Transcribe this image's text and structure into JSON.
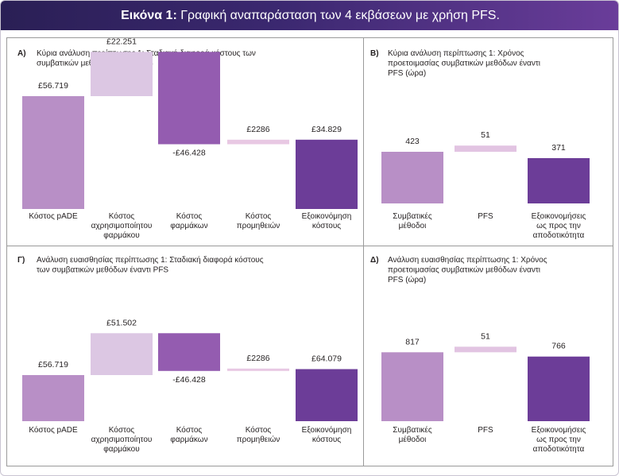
{
  "header": {
    "title_bold": "Εικόνα 1:",
    "title_rest": "Γραφική αναπαράσταση των 4 εκβάσεων με χρήση PFS."
  },
  "colors": {
    "pade": "#b88fc6",
    "drug_waste": "#dcc7e3",
    "drug_cost": "#945cb0",
    "supply": "#e8c8e3",
    "savings": "#6c3d98",
    "conventional": "#b88fc6",
    "pfs": "#e2c4e2",
    "time_savings": "#6c3d98"
  },
  "chart_data": [
    {
      "type": "bar",
      "subtype": "waterfall",
      "letter": "A)",
      "title_lines": [
        "Κύρια ανάλυση περίπτωσης 1: Σταδιακή διαφορά κόστους των",
        "συμβατικών μεθόδων έναντι PFS"
      ],
      "categories": [
        [
          "Κόστος pADE"
        ],
        [
          "Κόστος",
          "αχρησιμοποίητου",
          "φαρμάκου"
        ],
        [
          "Κόστος",
          "φαρμάκων"
        ],
        [
          "Κόστος",
          "προμηθειών"
        ],
        [
          "Εξοικονόμηση",
          "κόστους"
        ]
      ],
      "values": [
        56719,
        22251,
        -46428,
        2286,
        34829
      ],
      "value_labels": [
        "£56.719",
        "£22.251",
        "-£46.428",
        "£2286",
        "£34.829"
      ],
      "color_keys": [
        "pade",
        "drug_waste",
        "drug_cost",
        "supply",
        "savings"
      ]
    },
    {
      "type": "bar",
      "subtype": "waterfall",
      "letter": "Β)",
      "title_lines": [
        "Κύρια ανάλυση περίπτωσης 1: Χρόνος",
        "προετοιμασίας συμβατικών μεθόδων έναντι",
        "PFS (ώρα)"
      ],
      "categories": [
        [
          "Συμβατικές",
          "μέθοδοι"
        ],
        [
          "PFS"
        ],
        [
          "Εξοικονομήσεις",
          "ως προς την",
          "αποδοτικότητα"
        ]
      ],
      "values": [
        423,
        51,
        371
      ],
      "value_labels": [
        "423",
        "51",
        "371"
      ],
      "color_keys": [
        "conventional",
        "pfs",
        "time_savings"
      ]
    },
    {
      "type": "bar",
      "subtype": "waterfall",
      "letter": "Γ)",
      "title_lines": [
        "Ανάλυση ευαισθησίας περίπτωσης 1: Σταδιακή διαφορά κόστους",
        "των συμβατικών μεθόδων έναντι PFS"
      ],
      "categories": [
        [
          "Κόστος pADE"
        ],
        [
          "Κόστος",
          "αχρησιμοποίητου",
          "φαρμάκου"
        ],
        [
          "Κόστος",
          "φαρμάκων"
        ],
        [
          "Κόστος",
          "προμηθειών"
        ],
        [
          "Εξοικονόμηση",
          "κόστους"
        ]
      ],
      "values": [
        56719,
        51502,
        -46428,
        2286,
        64079
      ],
      "value_labels": [
        "£56.719",
        "£51.502",
        "-£46.428",
        "£2286",
        "£64.079"
      ],
      "color_keys": [
        "pade",
        "drug_waste",
        "drug_cost",
        "supply",
        "savings"
      ]
    },
    {
      "type": "bar",
      "subtype": "waterfall",
      "letter": "Δ)",
      "title_lines": [
        "Ανάλυση ευαισθησίας περίπτωσης 1: Χρόνος",
        "προετοιμασίας συμβατικών μεθόδων έναντι",
        "PFS (ώρα)"
      ],
      "categories": [
        [
          "Συμβατικές",
          "μέθοδοι"
        ],
        [
          "PFS"
        ],
        [
          "Εξοικονομήσεις",
          "ως προς την",
          "αποδοτικότητα"
        ]
      ],
      "values": [
        817,
        51,
        766
      ],
      "value_labels": [
        "817",
        "51",
        "766"
      ],
      "color_keys": [
        "conventional",
        "pfs",
        "time_savings"
      ]
    }
  ]
}
